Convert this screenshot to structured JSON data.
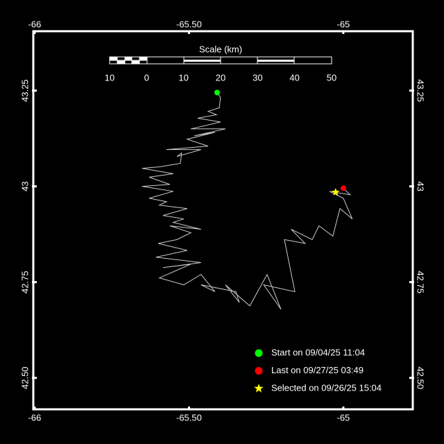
{
  "chart_data": {
    "type": "line",
    "background": "#000000",
    "xlim": [
      -66,
      -64.775
    ],
    "ylim": [
      42.418,
      43.405
    ],
    "xticks": [
      -66,
      {
        "value": -65.5,
        "label": "-65.50"
      },
      -65
    ],
    "yticks": [
      {
        "value": 42.5,
        "label": "42.50"
      },
      42.75,
      43,
      43.25
    ],
    "grid": false,
    "track": {
      "color": "#cccccc",
      "x": [
        -65.409,
        -65.398,
        -65.402,
        -65.438,
        -65.411,
        -65.472,
        -65.398,
        -65.494,
        -65.382,
        -65.483,
        -65.416,
        -65.506,
        -65.438,
        -65.573,
        -65.461,
        -65.539,
        -65.524,
        -65.528,
        -65.596,
        -65.652,
        -65.551,
        -65.629,
        -65.562,
        -65.652,
        -65.551,
        -65.629,
        -65.573,
        -65.596,
        -65.506,
        -65.584,
        -65.517,
        -65.551,
        -65.461,
        -65.562,
        -65.494,
        -65.539,
        -65.6,
        -65.506,
        -65.607,
        -65.461,
        -65.584,
        -65.494,
        -65.596,
        -65.517,
        -65.461,
        -65.416,
        -65.461,
        -65.348,
        -65.337,
        -65.382,
        -65.303,
        -65.247,
        -65.202,
        -65.258,
        -65.157,
        -65.191,
        -65.124,
        -65.169,
        -65.101,
        -65.079,
        -65.034,
        -65.011,
        -64.971,
        -65.0,
        -65.045,
        -64.978,
        -65.0
      ],
      "y": [
        43.245,
        43.232,
        43.205,
        43.196,
        43.187,
        43.178,
        43.168,
        43.15,
        43.15,
        43.132,
        43.141,
        43.123,
        43.105,
        43.096,
        43.096,
        43.078,
        43.087,
        43.06,
        43.051,
        43.047,
        43.033,
        43.024,
        43.005,
        43.0,
        42.987,
        42.969,
        42.96,
        42.951,
        42.942,
        42.924,
        42.915,
        42.906,
        42.888,
        42.897,
        42.879,
        42.861,
        42.851,
        42.833,
        42.815,
        42.801,
        42.788,
        42.797,
        42.761,
        42.743,
        42.77,
        42.725,
        42.743,
        42.725,
        42.697,
        42.743,
        42.688,
        42.77,
        42.679,
        42.743,
        42.725,
        42.861,
        42.851,
        42.888,
        42.861,
        42.897,
        42.87,
        42.942,
        42.915,
        42.969,
        42.987,
        42.978,
        42.995
      ]
    },
    "markers": [
      {
        "label": "Start on 09/04/25 11:04",
        "shape": "circle",
        "color": "#00ff00",
        "x": -65.409,
        "y": 43.245
      },
      {
        "label": "Last on 09/27/25 03:49",
        "shape": "circle",
        "color": "#ff0000",
        "x": -65.0,
        "y": 42.995
      },
      {
        "label": "Selected on 09/26/25 15:04",
        "shape": "star",
        "color": "#ffff00",
        "x": -65.025,
        "y": 42.985
      }
    ],
    "scale": {
      "title": "Scale (km)",
      "labels": [
        10,
        0,
        10,
        20,
        30,
        40,
        50
      ]
    }
  }
}
